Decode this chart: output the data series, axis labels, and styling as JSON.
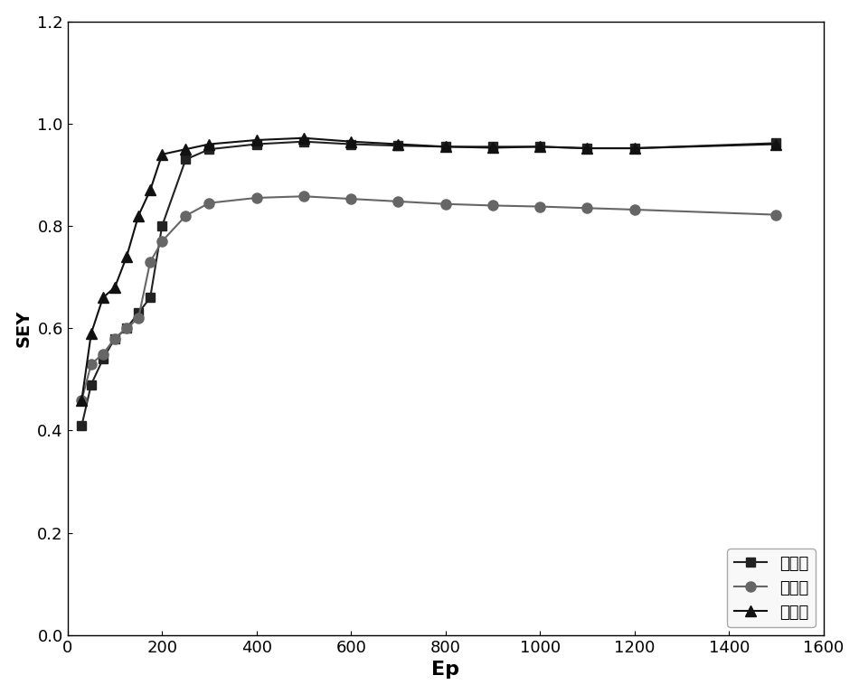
{
  "series1": {
    "label": "一号点",
    "x": [
      30,
      50,
      75,
      100,
      125,
      150,
      175,
      200,
      250,
      300,
      400,
      500,
      600,
      700,
      800,
      900,
      1000,
      1100,
      1200,
      1500
    ],
    "y": [
      0.41,
      0.49,
      0.54,
      0.58,
      0.6,
      0.63,
      0.66,
      0.8,
      0.93,
      0.95,
      0.96,
      0.965,
      0.96,
      0.957,
      0.955,
      0.955,
      0.955,
      0.952,
      0.952,
      0.962
    ],
    "marker": "s",
    "color": "#222222",
    "linewidth": 1.5,
    "markersize": 7
  },
  "series2": {
    "label": "二号点",
    "x": [
      30,
      50,
      75,
      100,
      125,
      150,
      175,
      200,
      250,
      300,
      400,
      500,
      600,
      700,
      800,
      900,
      1000,
      1100,
      1200,
      1500
    ],
    "y": [
      0.46,
      0.53,
      0.55,
      0.58,
      0.6,
      0.62,
      0.73,
      0.77,
      0.82,
      0.845,
      0.855,
      0.858,
      0.853,
      0.848,
      0.843,
      0.84,
      0.838,
      0.835,
      0.832,
      0.822
    ],
    "marker": "o",
    "color": "#666666",
    "linewidth": 1.5,
    "markersize": 8
  },
  "series3": {
    "label": "三号点",
    "x": [
      30,
      50,
      75,
      100,
      125,
      150,
      175,
      200,
      250,
      300,
      400,
      500,
      600,
      700,
      800,
      900,
      1000,
      1100,
      1200,
      1500
    ],
    "y": [
      0.46,
      0.59,
      0.66,
      0.68,
      0.74,
      0.82,
      0.87,
      0.94,
      0.95,
      0.96,
      0.968,
      0.972,
      0.965,
      0.96,
      0.955,
      0.953,
      0.955,
      0.952,
      0.952,
      0.96
    ],
    "marker": "^",
    "color": "#111111",
    "linewidth": 1.5,
    "markersize": 9
  },
  "xlabel": "Ep",
  "ylabel": "SEY",
  "xlim": [
    0,
    1600
  ],
  "ylim": [
    0.0,
    1.2
  ],
  "xticks": [
    0,
    200,
    400,
    600,
    800,
    1000,
    1200,
    1400,
    1600
  ],
  "yticks": [
    0.0,
    0.2,
    0.4,
    0.6,
    0.8,
    1.0,
    1.2
  ],
  "legend_loc": "lower right",
  "background_color": "#ffffff",
  "xlabel_fontsize": 16,
  "ylabel_fontsize": 14,
  "tick_fontsize": 13,
  "legend_fontsize": 13
}
